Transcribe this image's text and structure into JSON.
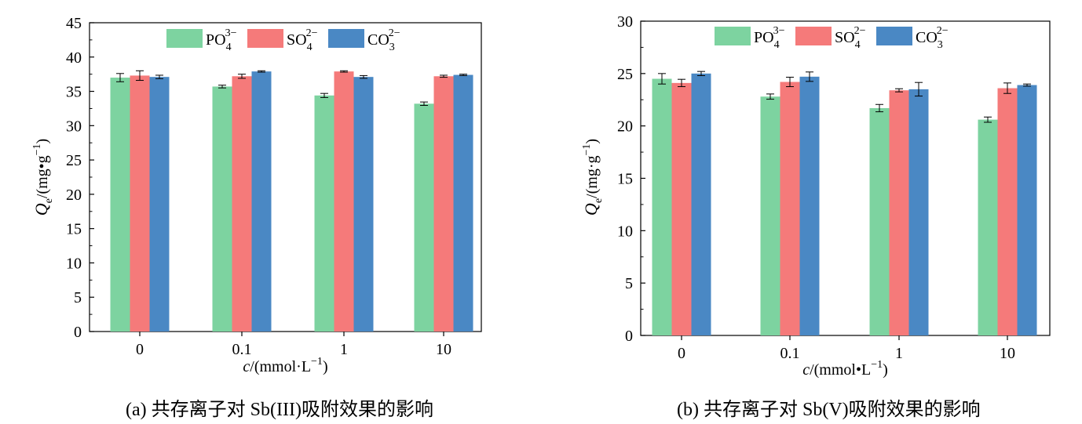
{
  "colors": {
    "po4": "#7dd3a0",
    "so4": "#f57a7a",
    "co3": "#4a88c4"
  },
  "chart_data": [
    {
      "type": "bar",
      "caption": "(a)  共存离子对 Sb(III)吸附效果的影响",
      "categories": [
        "0",
        "0.1",
        "1",
        "10"
      ],
      "xlabel": {
        "italic": "c",
        "text": "/(mmol·L",
        "sup": "−1",
        "close": ")"
      },
      "ylabel": {
        "italic": "Q",
        "sub": "e",
        "text": "/(mg•g",
        "sup": "−1",
        "close": ")"
      },
      "ylim": [
        0,
        45
      ],
      "yticks": [
        0,
        5,
        10,
        15,
        20,
        25,
        30,
        35,
        40,
        45
      ],
      "legend": "top",
      "series": [
        {
          "base": "PO",
          "sub": "4",
          "sup": "3−",
          "color": "#7dd3a0",
          "values": [
            37.0,
            35.7,
            34.4,
            33.2
          ],
          "errors": [
            0.6,
            0.2,
            0.3,
            0.25
          ]
        },
        {
          "base": "SO",
          "sub": "4",
          "sup": "2−",
          "color": "#f57a7a",
          "values": [
            37.3,
            37.2,
            37.9,
            37.2
          ],
          "errors": [
            0.7,
            0.3,
            0.1,
            0.15
          ]
        },
        {
          "base": "CO",
          "sub": "3",
          "sup": "2−",
          "color": "#4a88c4",
          "values": [
            37.1,
            37.9,
            37.1,
            37.4
          ],
          "errors": [
            0.25,
            0.1,
            0.2,
            0.1
          ]
        }
      ]
    },
    {
      "type": "bar",
      "caption": "(b)  共存离子对 Sb(V)吸附效果的影响",
      "categories": [
        "0",
        "0.1",
        "1",
        "10"
      ],
      "xlabel": {
        "italic": "c",
        "text": "/(mmol•L",
        "sup": "−1",
        "close": ")"
      },
      "ylabel": {
        "italic": "Q",
        "sub": "e",
        "text": "/(mg·g",
        "sup": "−1",
        "close": ")"
      },
      "ylim": [
        0,
        30
      ],
      "yticks": [
        0,
        5,
        10,
        15,
        20,
        25,
        30
      ],
      "legend": "top",
      "series": [
        {
          "base": "PO",
          "sub": "4",
          "sup": "3−",
          "color": "#7dd3a0",
          "values": [
            24.5,
            22.8,
            21.7,
            20.6
          ],
          "errors": [
            0.5,
            0.25,
            0.35,
            0.25
          ]
        },
        {
          "base": "SO",
          "sub": "4",
          "sup": "2−",
          "color": "#f57a7a",
          "values": [
            24.1,
            24.2,
            23.4,
            23.6
          ],
          "errors": [
            0.35,
            0.45,
            0.15,
            0.5
          ]
        },
        {
          "base": "CO",
          "sub": "3",
          "sup": "2−",
          "color": "#4a88c4",
          "values": [
            25.0,
            24.7,
            23.5,
            23.9
          ],
          "errors": [
            0.2,
            0.45,
            0.65,
            0.1
          ]
        }
      ]
    }
  ]
}
